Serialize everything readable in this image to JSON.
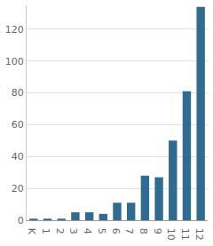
{
  "chart_data": {
    "type": "bar",
    "categories": [
      "K",
      "1",
      "2",
      "3",
      "4",
      "5",
      "6",
      "7",
      "8",
      "9",
      "10",
      "11",
      "12"
    ],
    "values": [
      1,
      1,
      1,
      5,
      5,
      4,
      11,
      11,
      28,
      27,
      50,
      81,
      134
    ],
    "color": "#336a90",
    "ylim": [
      0,
      135
    ],
    "yticks": [
      0,
      20,
      40,
      60,
      80,
      100,
      120
    ],
    "grid": true
  }
}
